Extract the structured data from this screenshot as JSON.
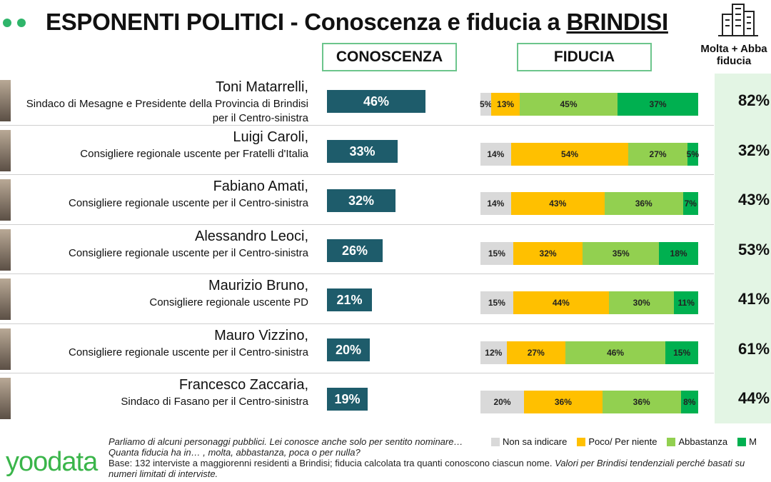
{
  "header": {
    "title_main": "ESPONENTI POLITICI - Conoscenza e fiducia a ",
    "title_city": "BRINDISI",
    "col_conoscenza": "CONOSCENZA",
    "col_fiducia": "FIDUCIA",
    "col_sum_line1": "Molta + Abba",
    "col_sum_line2": "fiducia"
  },
  "colors": {
    "conoscenza_bar": "#1e5c6b",
    "non_sa": "#d9d9d9",
    "poco": "#ffc000",
    "abbastanza": "#92d050",
    "molta": "#00b050",
    "sum_panel": "#e3f5e4",
    "accent": "#2fb56a"
  },
  "chart_data": {
    "type": "bar",
    "categories": [
      "Toni Matarrelli",
      "Luigi Caroli",
      "Fabiano Amati",
      "Alessandro Leoci",
      "Maurizio Bruno",
      "Mauro Vizzino",
      "Francesco Zaccaria"
    ],
    "rows": [
      {
        "name": "Toni Matarrelli,",
        "role": "Sindaco di Mesagne e Presidente della Provincia di Brindisi per il Centro-sinistra",
        "conoscenza": 46,
        "conoscenza_label": "46%",
        "fiducia": [
          5,
          13,
          45,
          37
        ],
        "fiducia_labels": [
          "5%",
          "13%",
          "45%",
          "37%"
        ],
        "sum": "82%"
      },
      {
        "name": "Luigi Caroli,",
        "role": "Consigliere regionale uscente per Fratelli d'Italia",
        "conoscenza": 33,
        "conoscenza_label": "33%",
        "fiducia": [
          14,
          54,
          27,
          5
        ],
        "fiducia_labels": [
          "14%",
          "54%",
          "27%",
          "5%"
        ],
        "sum": "32%"
      },
      {
        "name": "Fabiano Amati,",
        "role": "Consigliere regionale uscente per il Centro-sinistra",
        "conoscenza": 32,
        "conoscenza_label": "32%",
        "fiducia": [
          14,
          43,
          36,
          7
        ],
        "fiducia_labels": [
          "14%",
          "43%",
          "36%",
          "7%"
        ],
        "sum": "43%"
      },
      {
        "name": "Alessandro Leoci,",
        "role": "Consigliere regionale uscente per il Centro-sinistra",
        "conoscenza": 26,
        "conoscenza_label": "26%",
        "fiducia": [
          15,
          32,
          35,
          18
        ],
        "fiducia_labels": [
          "15%",
          "32%",
          "35%",
          "18%"
        ],
        "sum": "53%"
      },
      {
        "name": "Maurizio Bruno,",
        "role": "Consigliere regionale uscente PD",
        "conoscenza": 21,
        "conoscenza_label": "21%",
        "fiducia": [
          15,
          44,
          30,
          11
        ],
        "fiducia_labels": [
          "15%",
          "44%",
          "30%",
          "11%"
        ],
        "sum": "41%"
      },
      {
        "name": "Mauro Vizzino,",
        "role": "Consigliere regionale uscente per il Centro-sinistra",
        "conoscenza": 20,
        "conoscenza_label": "20%",
        "fiducia": [
          12,
          27,
          46,
          15
        ],
        "fiducia_labels": [
          "12%",
          "27%",
          "46%",
          "15%"
        ],
        "sum": "61%"
      },
      {
        "name": "Francesco Zaccaria,",
        "role": "Sindaco di Fasano per il Centro-sinistra",
        "conoscenza": 19,
        "conoscenza_label": "19%",
        "fiducia": [
          20,
          36,
          36,
          8
        ],
        "fiducia_labels": [
          "20%",
          "36%",
          "36%",
          "8%"
        ],
        "sum": "44%"
      }
    ],
    "fiducia_series": [
      "Non sa indicare",
      "Poco/ Per niente",
      "Abbastanza",
      "M"
    ]
  },
  "legend": {
    "non_sa": "Non sa indicare",
    "poco": "Poco/ Per niente",
    "abbastanza": "Abbastanza",
    "molta": "M"
  },
  "footer": {
    "q1": "Parliamo di alcuni personaggi pubblici. Lei conosce anche solo per sentito nominare…",
    "q2": "Quanta fiducia ha in… , molta, abbastanza, poca o per nulla?",
    "base": "Base: 132 interviste a maggiorenni residenti a Brindisi; fiducia calcolata tra quanti conoscono ciascun nome. ",
    "note": "Valori per Brindisi tendenziali perché basati su numeri limitati di interviste.",
    "logo": "yoodata"
  }
}
